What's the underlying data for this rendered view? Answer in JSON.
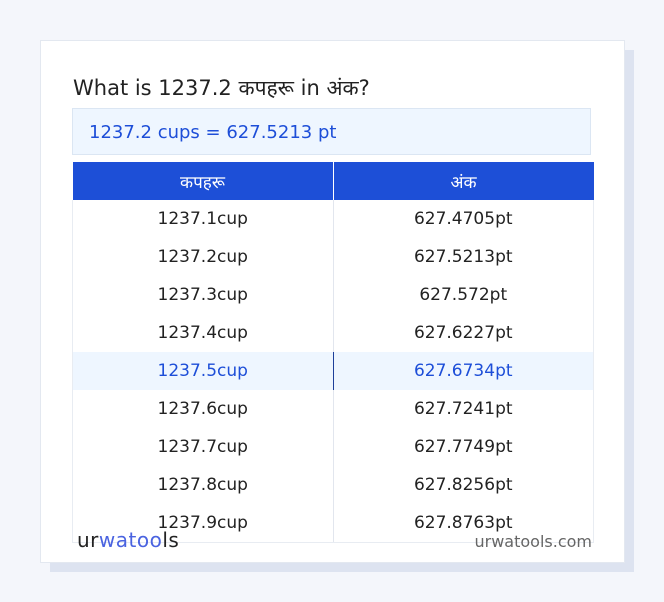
{
  "title": "What is 1237.2 कपहरू in अंक?",
  "result": "1237.2 cups = 627.5213 pt",
  "table": {
    "headers": [
      "कपहरू",
      "अंक"
    ],
    "rows": [
      [
        "1237.1cup",
        "627.4705pt"
      ],
      [
        "1237.2cup",
        "627.5213pt"
      ],
      [
        "1237.3cup",
        "627.572pt"
      ],
      [
        "1237.4cup",
        "627.6227pt"
      ],
      [
        "1237.5cup",
        "627.6734pt"
      ],
      [
        "1237.6cup",
        "627.7241pt"
      ],
      [
        "1237.7cup",
        "627.7749pt"
      ],
      [
        "1237.8cup",
        "627.8256pt"
      ],
      [
        "1237.9cup",
        "627.8763pt"
      ]
    ],
    "highlighted_row": 4
  },
  "footer": {
    "logo": "urwatools",
    "logo_parts": [
      "ur",
      "wa",
      "too",
      "ls"
    ],
    "site": "urwatools.com"
  },
  "colors": {
    "accent": "#1d4fd7",
    "highlight_bg": "#eef6ff"
  }
}
